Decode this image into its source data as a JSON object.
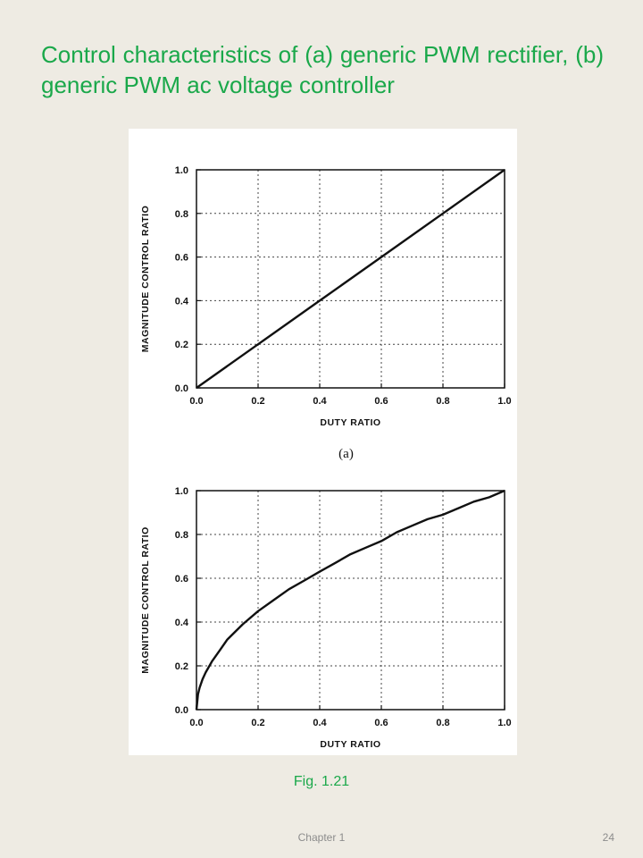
{
  "slide": {
    "title": "Control characteristics of (a) generic PWM rectifier, (b) generic PWM ac voltage controller",
    "caption": "Fig. 1.21",
    "footer_chapter": "Chapter 1",
    "footer_page": "24",
    "accent_color": "#1aa84a"
  },
  "chart_data": [
    {
      "type": "line",
      "label": "(a)",
      "xlabel": "DUTY RATIO",
      "ylabel": "MAGNITUDE CONTROL RATIO",
      "xlim": [
        0.0,
        1.0
      ],
      "ylim": [
        0.0,
        1.0
      ],
      "xticks": [
        "0.0",
        "0.2",
        "0.4",
        "0.6",
        "0.8",
        "1.0"
      ],
      "yticks": [
        "0.0",
        "0.2",
        "0.4",
        "0.6",
        "0.8",
        "1.0"
      ],
      "grid": true,
      "series": [
        {
          "x": [
            0.0,
            0.2,
            0.4,
            0.6,
            0.8,
            1.0
          ],
          "y": [
            0.0,
            0.2,
            0.4,
            0.6,
            0.8,
            1.0
          ]
        }
      ]
    },
    {
      "type": "line",
      "label": "",
      "xlabel": "DUTY RATIO",
      "ylabel": "MAGNITUDE CONTROL RATIO",
      "xlim": [
        0.0,
        1.0
      ],
      "ylim": [
        0.0,
        1.0
      ],
      "xticks": [
        "0.0",
        "0.2",
        "0.4",
        "0.6",
        "0.8",
        "1.0"
      ],
      "yticks": [
        "0.0",
        "0.2",
        "0.4",
        "0.6",
        "0.8",
        "1.0"
      ],
      "grid": true,
      "series": [
        {
          "x": [
            0.0,
            0.005,
            0.01,
            0.02,
            0.03,
            0.05,
            0.075,
            0.1,
            0.15,
            0.2,
            0.25,
            0.3,
            0.35,
            0.4,
            0.45,
            0.5,
            0.55,
            0.6,
            0.65,
            0.7,
            0.75,
            0.8,
            0.85,
            0.9,
            0.95,
            1.0
          ],
          "y": [
            0.0,
            0.07,
            0.1,
            0.14,
            0.17,
            0.22,
            0.27,
            0.32,
            0.39,
            0.45,
            0.5,
            0.55,
            0.59,
            0.63,
            0.67,
            0.71,
            0.74,
            0.77,
            0.81,
            0.84,
            0.87,
            0.89,
            0.92,
            0.95,
            0.97,
            1.0
          ]
        }
      ]
    }
  ]
}
